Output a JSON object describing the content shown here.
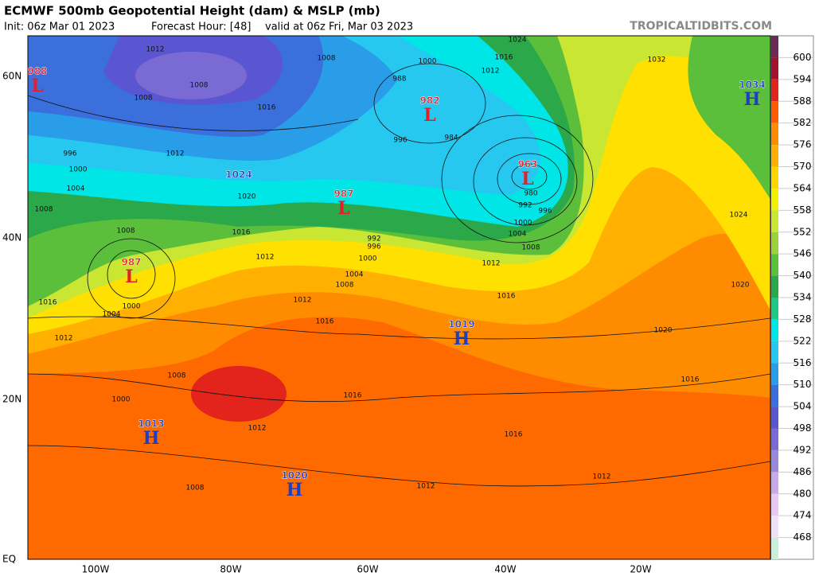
{
  "header": {
    "title": "ECMWF 500mb Geopotential Height (dam) & MSLP (mb)",
    "init": "Init: 06z Mar 01 2023",
    "forecast": "Forecast Hour: [48]",
    "valid": "valid at 06z Fri, Mar 03 2023",
    "site": "TROPICALTIDBITS.COM"
  },
  "axes": {
    "lat_labels": [
      "60N",
      "40N",
      "20N",
      "EQ"
    ],
    "lon_labels": [
      "100W",
      "80W",
      "60W",
      "40W",
      "20W"
    ]
  },
  "colorbar": {
    "labels": [
      "600",
      "594",
      "588",
      "582",
      "576",
      "570",
      "564",
      "558",
      "552",
      "546",
      "540",
      "534",
      "528",
      "522",
      "516",
      "510",
      "504",
      "498",
      "492",
      "486",
      "480",
      "474",
      "468"
    ],
    "colors": [
      "#6d2a56",
      "#a1122f",
      "#e2241c",
      "#ff5a00",
      "#ff8c00",
      "#ffb000",
      "#ffd400",
      "#f0f000",
      "#c8e632",
      "#9ad23c",
      "#5cbf3c",
      "#2aa84a",
      "#1ec882",
      "#00e5e5",
      "#27c8f0",
      "#2a9de8",
      "#3a6fdc",
      "#5a55d0",
      "#7a6ad4",
      "#9a88dc",
      "#c8a8ea",
      "#e8c8f2",
      "#f0e0f4",
      "#c8f0d8"
    ]
  },
  "centers": [
    {
      "value": "988",
      "letter": "L"
    },
    {
      "value": "982",
      "letter": "L"
    },
    {
      "value": "963",
      "letter": "L"
    },
    {
      "value": "987",
      "letter": "L"
    },
    {
      "value": "987",
      "letter": "L"
    },
    {
      "value": "1024",
      "letter": ""
    },
    {
      "value": "1019",
      "letter": "H"
    },
    {
      "value": "1034",
      "letter": "H"
    },
    {
      "value": "1013",
      "letter": "H"
    },
    {
      "value": "1020",
      "letter": "H"
    }
  ],
  "isobar_labels": [
    "1012",
    "1008",
    "1008",
    "1016",
    "1012",
    "996",
    "1000",
    "1004",
    "1008",
    "1008",
    "1016",
    "1012",
    "1020",
    "1008",
    "1000",
    "988",
    "984",
    "996",
    "980",
    "992",
    "996",
    "1000",
    "1004",
    "1008",
    "992",
    "996",
    "1000",
    "1004",
    "1008",
    "1012",
    "1012",
    "1016",
    "1016",
    "1016",
    "1012",
    "1024",
    "1032",
    "1024",
    "1020",
    "1020",
    "1016",
    "1016",
    "1016",
    "1012",
    "1012",
    "1012",
    "1008",
    "1000",
    "1012",
    "1016",
    "1000",
    "1004",
    "1008"
  ]
}
